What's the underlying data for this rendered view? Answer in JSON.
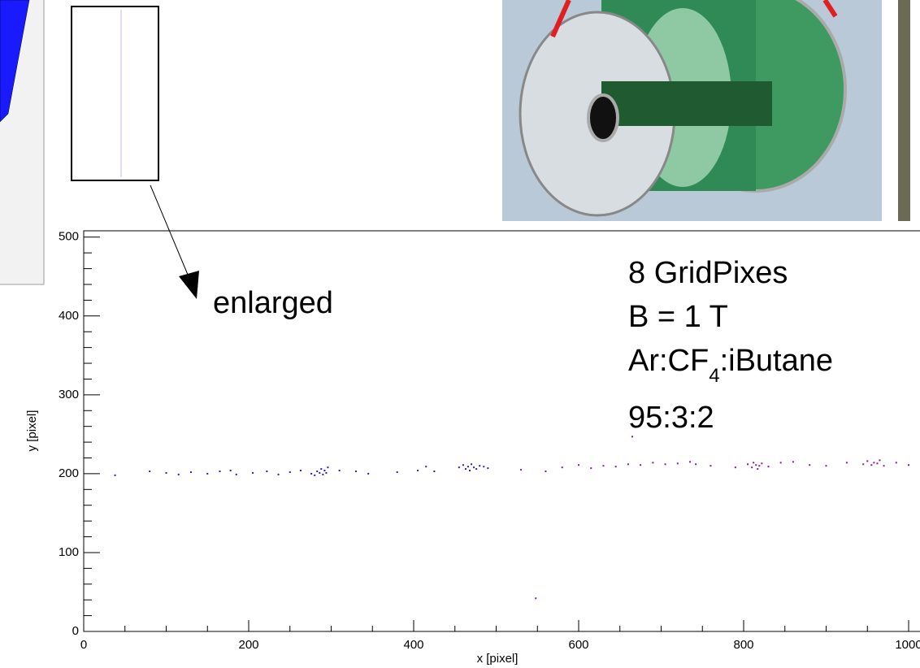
{
  "chart_data": {
    "type": "scatter",
    "x_label": "x [pixel]",
    "y_label": "y [pixel]",
    "xlim": [
      0,
      1000
    ],
    "ylim": [
      0,
      508
    ],
    "xticks": [
      0,
      200,
      400,
      600,
      800,
      1000
    ],
    "yticks": [
      0,
      100,
      200,
      300,
      400,
      500
    ],
    "x_minor_ticks": [
      50,
      100,
      150,
      250,
      300,
      350,
      450,
      500,
      550,
      650,
      700,
      750,
      850,
      900,
      950
    ],
    "y_minor_ticks": [
      20,
      40,
      60,
      80,
      120,
      140,
      160,
      180,
      220,
      240,
      260,
      280,
      320,
      340,
      360,
      380,
      420,
      440,
      460,
      480
    ],
    "series": [
      {
        "color": "#2a1bd0",
        "x": [
          38,
          80,
          100,
          115,
          130,
          150,
          165,
          178,
          185,
          205,
          222,
          236,
          250,
          263,
          276,
          280,
          283,
          286,
          288,
          290,
          292,
          294,
          296,
          310,
          330,
          345,
          380,
          405,
          415,
          425,
          455,
          460,
          463,
          466,
          468,
          470,
          473,
          476,
          480,
          485,
          490
        ],
        "values": [
          198,
          203,
          201,
          199,
          202,
          200,
          203,
          204,
          199,
          201,
          203,
          199,
          202,
          204,
          200,
          198,
          203,
          201,
          206,
          199,
          204,
          201,
          208,
          204,
          203,
          200,
          202,
          204,
          209,
          203,
          208,
          211,
          206,
          209,
          204,
          212,
          208,
          206,
          210,
          209,
          207
        ]
      },
      {
        "color": "#8a1a9a",
        "x": [
          530,
          548,
          560,
          580,
          600,
          615,
          630,
          645,
          660,
          665,
          675,
          690,
          705,
          720,
          735,
          742,
          760,
          790,
          805,
          810,
          812,
          815,
          817,
          819,
          822,
          830,
          845,
          860,
          880,
          900,
          925,
          945,
          950,
          955,
          958,
          962,
          965,
          970,
          985,
          1000
        ],
        "values": [
          205,
          42,
          203,
          208,
          211,
          207,
          210,
          209,
          212,
          247,
          211,
          214,
          212,
          213,
          215,
          212,
          210,
          208,
          212,
          208,
          214,
          211,
          206,
          210,
          213,
          209,
          214,
          215,
          211,
          210,
          214,
          212,
          216,
          211,
          214,
          213,
          217,
          210,
          214,
          211
        ]
      }
    ],
    "annotation": "enlarged",
    "info": {
      "line1": "8 GridPixes",
      "line2": "B = 1 T",
      "line3": [
        "Ar:CF",
        "4",
        ":iButane"
      ],
      "line4": "95:3:2"
    }
  }
}
